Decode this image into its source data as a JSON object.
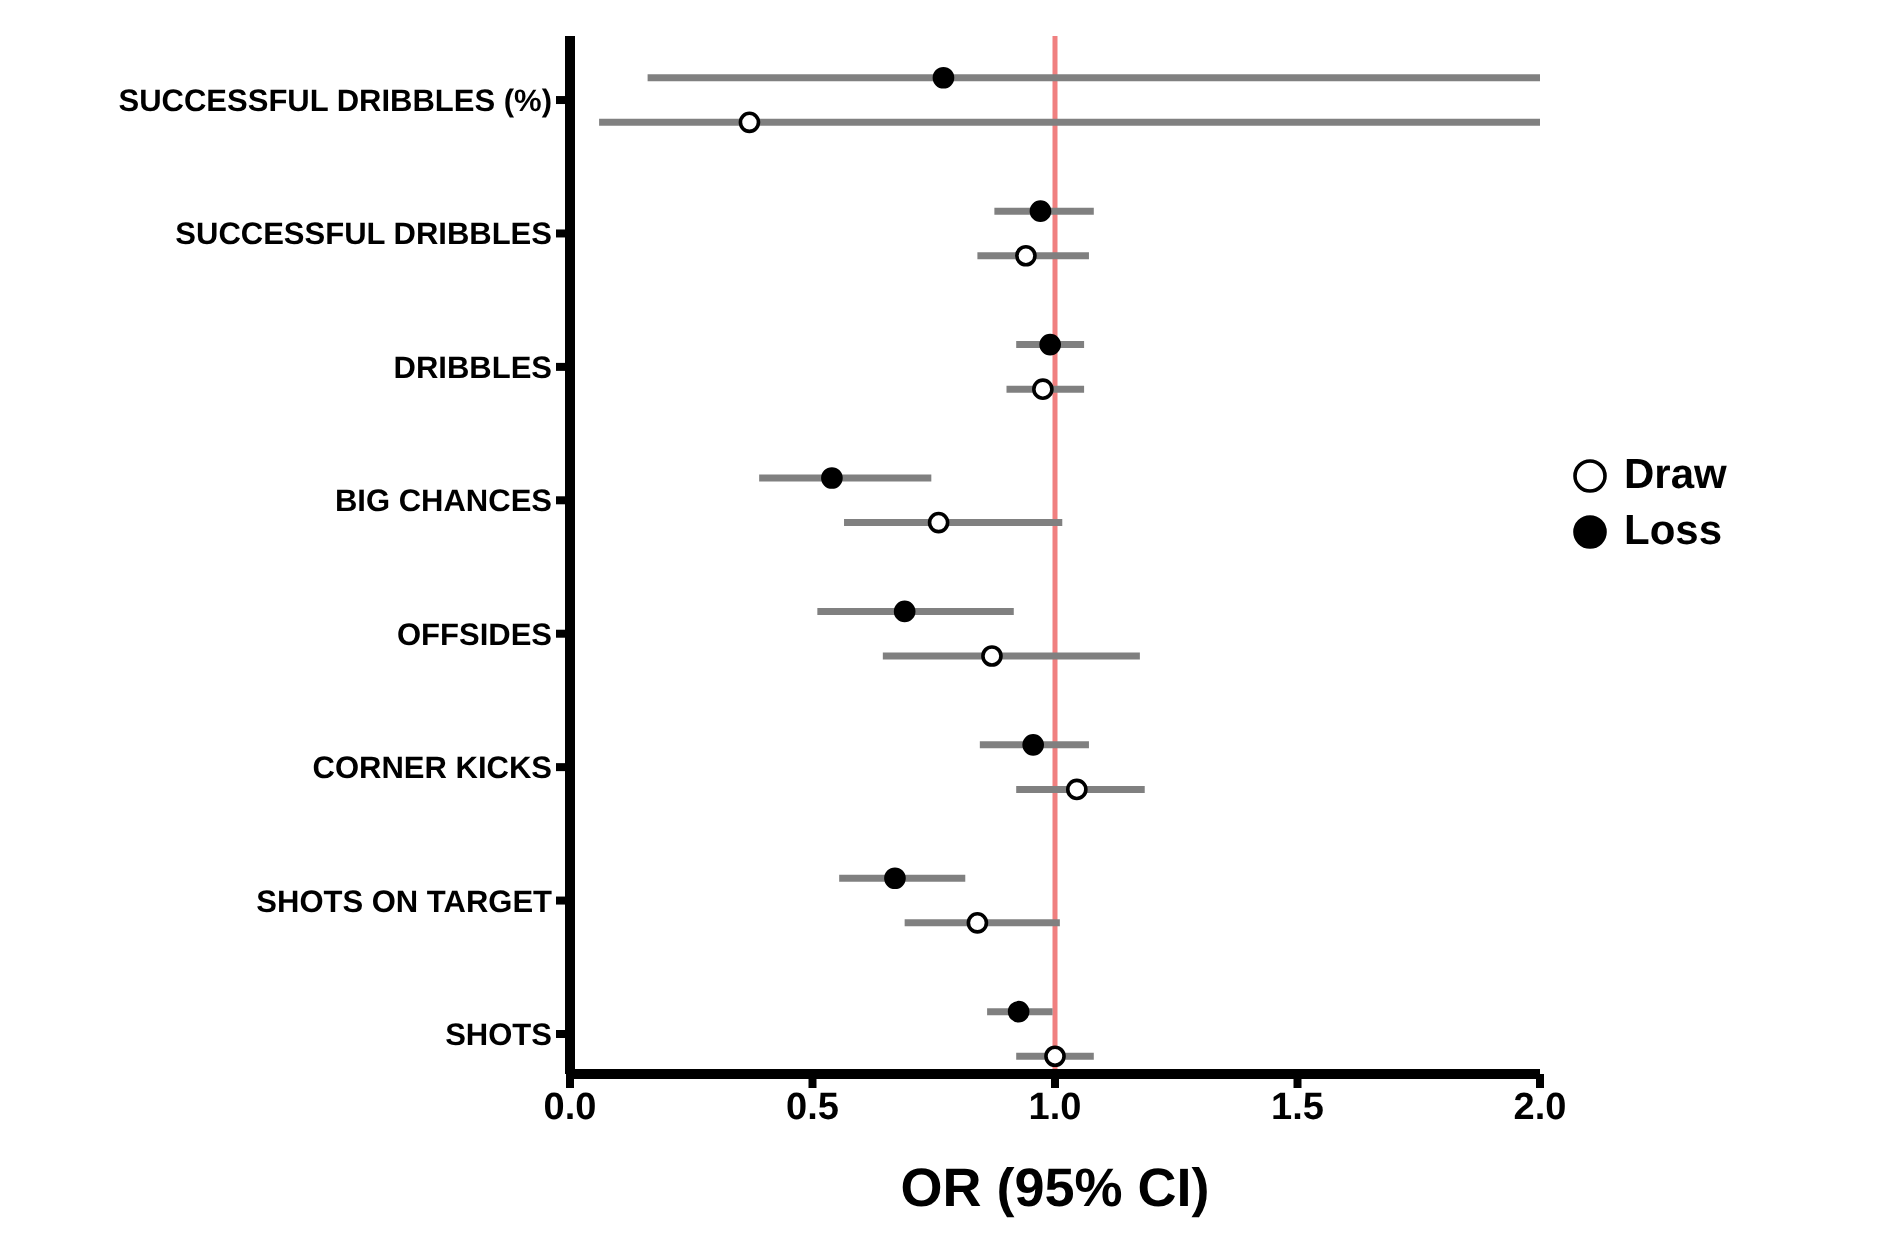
{
  "chart_data": {
    "type": "scatter",
    "orientation": "horizontal",
    "xlabel": "OR (95% CI)",
    "categories": [
      "SUCCESSFUL DRIBBLES (%)",
      "SUCCESSFUL DRIBBLES",
      "DRIBBLES",
      "BIG CHANCES",
      "OFFSIDES",
      "CORNER KICKS",
      "SHOTS ON TARGET",
      "SHOTS"
    ],
    "series": [
      {
        "name": "Draw",
        "color": "#ffffff",
        "values": [
          0.37,
          0.94,
          0.975,
          0.76,
          0.87,
          1.045,
          0.84,
          1.0
        ],
        "errors": [
          [
            0.06,
            2.0
          ],
          [
            0.84,
            1.07
          ],
          [
            0.9,
            1.06
          ],
          [
            0.565,
            1.015
          ],
          [
            0.645,
            1.175
          ],
          [
            0.92,
            1.185
          ],
          [
            0.69,
            1.01
          ],
          [
            0.92,
            1.08
          ]
        ]
      },
      {
        "name": "Loss",
        "color": "#000000",
        "values": [
          0.77,
          0.97,
          0.99,
          0.54,
          0.69,
          0.955,
          0.67,
          0.925
        ],
        "errors": [
          [
            0.16,
            2.0
          ],
          [
            0.875,
            1.08
          ],
          [
            0.92,
            1.06
          ],
          [
            0.39,
            0.745
          ],
          [
            0.51,
            0.915
          ],
          [
            0.845,
            1.07
          ],
          [
            0.555,
            0.815
          ],
          [
            0.86,
            0.995
          ]
        ]
      }
    ],
    "xlim": [
      0,
      2
    ],
    "xticks": [
      {
        "value": 0,
        "label": "0.0"
      },
      {
        "value": 0.5,
        "label": "0.5"
      },
      {
        "value": 1,
        "label": "1.0"
      },
      {
        "value": 1.5,
        "label": "1.5"
      },
      {
        "value": 2,
        "label": "2.0"
      }
    ],
    "ref_lines": [
      {
        "axis": "x",
        "value": 1,
        "color": "#f08080"
      }
    ],
    "grid": false,
    "legend": "right",
    "marker": "circle"
  }
}
